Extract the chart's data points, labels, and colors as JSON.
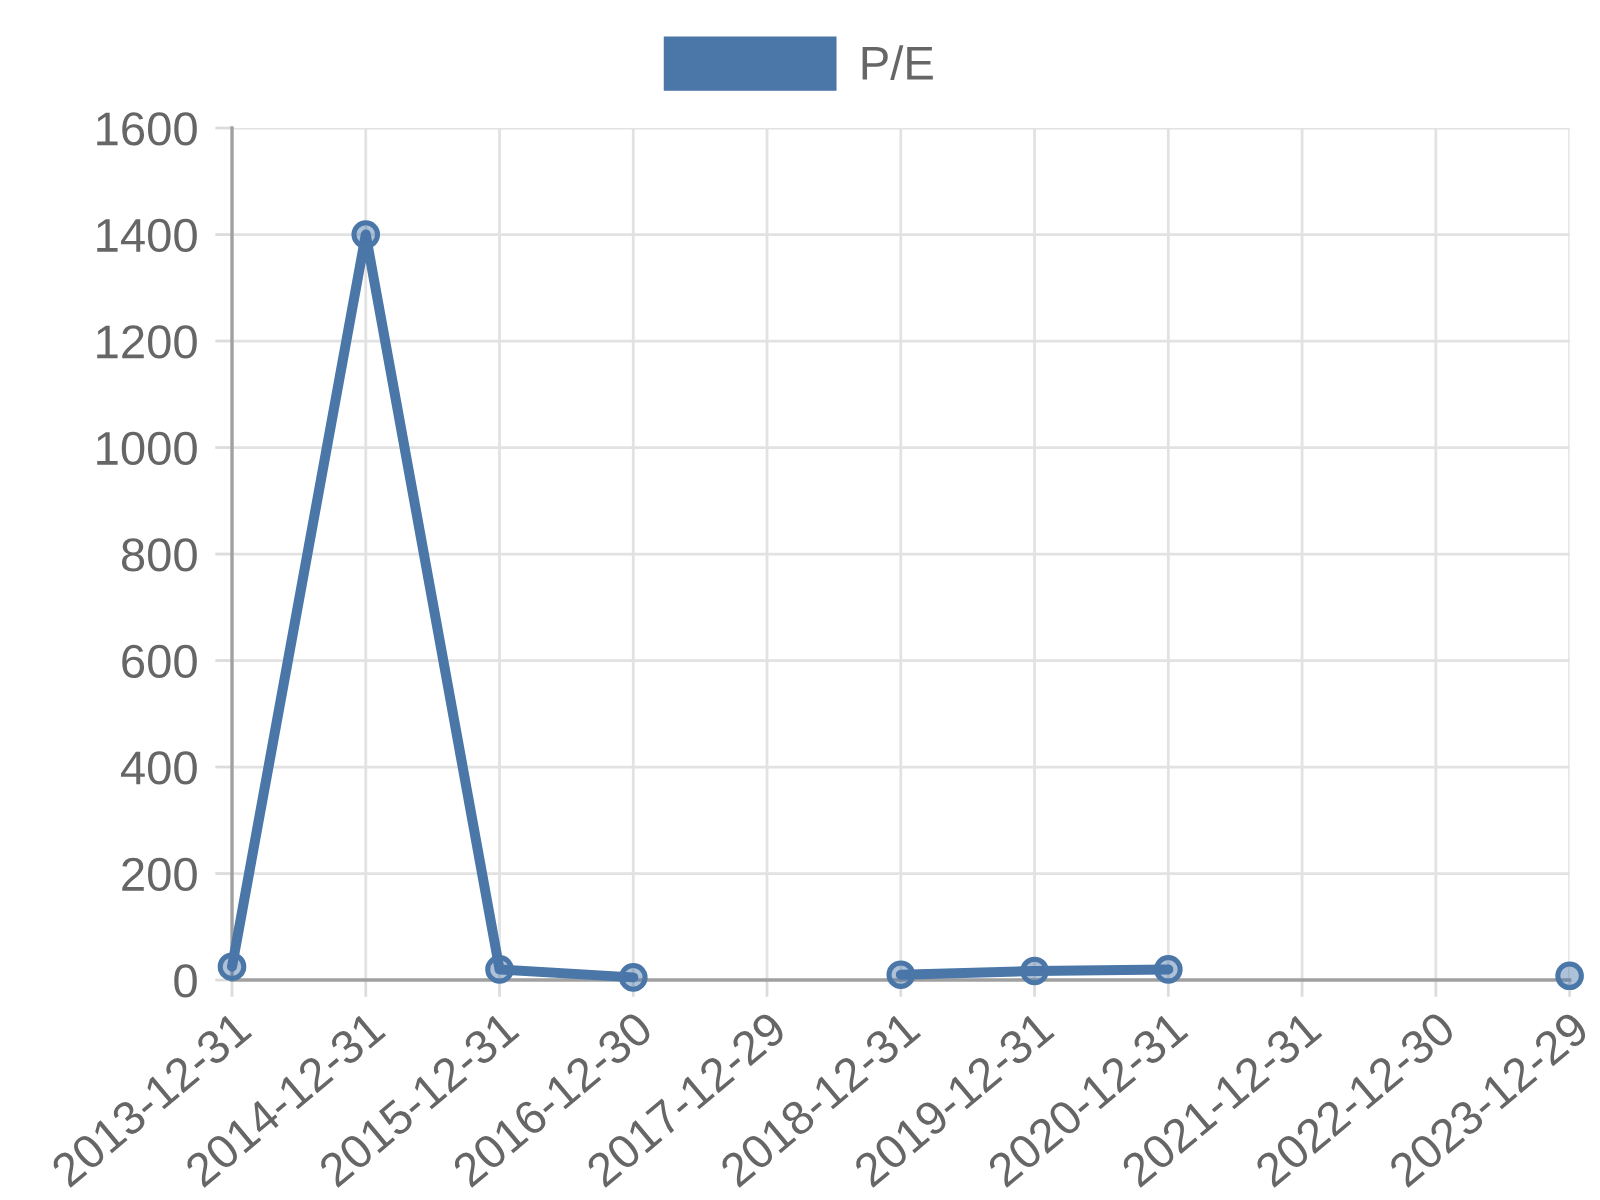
{
  "chart_data": {
    "type": "line",
    "categories": [
      "2013-12-31",
      "2014-12-31",
      "2015-12-31",
      "2016-12-30",
      "2017-12-29",
      "2018-12-31",
      "2019-12-31",
      "2020-12-31",
      "2021-12-31",
      "2022-12-30",
      "2023-12-29"
    ],
    "series": [
      {
        "name": "P/E",
        "color": "#4a76a8",
        "values": [
          25,
          1400,
          20,
          5,
          null,
          10,
          17,
          20,
          null,
          null,
          8
        ]
      }
    ],
    "ylim": [
      0,
      1600
    ],
    "yticks": [
      0,
      200,
      400,
      600,
      800,
      1000,
      1200,
      1400,
      1600
    ],
    "grid": true,
    "legend": "top",
    "marker": "circle",
    "line_style": "solid"
  }
}
